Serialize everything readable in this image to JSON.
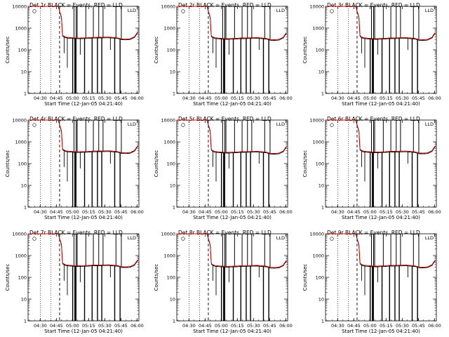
{
  "figure": {
    "colors": {
      "events": "#000000",
      "lld": "#cc0000",
      "axes": "#000000"
    }
  },
  "chart_data": [
    {
      "type": "line",
      "title": "Det 1r BLACK = Events, RED = LLD",
      "xlabel": "Start Time (12-Jan-05 04:21:40)",
      "ylabel": "Counts/sec",
      "yscale": "log",
      "ylim": [
        1,
        10000
      ],
      "yticks": [
        1,
        10,
        100,
        1000,
        10000
      ],
      "ytick_labels": [
        "1",
        "10",
        "100",
        "1000",
        "10000"
      ],
      "xlim_minutes": [
        -3,
        100
      ],
      "xticks": [
        8.33,
        23.33,
        38.33,
        53.33,
        68.33,
        83.33,
        98.33
      ],
      "xtick_labels": [
        "04:30",
        "04:45",
        "05:00",
        "05:15",
        "05:30",
        "05:45",
        "06:00"
      ],
      "dotted_markers": [
        8.33,
        18.3
      ],
      "dashed_marker": 26.3,
      "legend_label": "LLD",
      "plateau": 340
    },
    {
      "type": "line",
      "title": "Det 2r BLACK = Events, RED = LLD",
      "xlabel": "Start Time (12-Jan-05 04:21:40)",
      "ylabel": "Counts/sec",
      "yscale": "log",
      "ylim": [
        1,
        10000
      ],
      "yticks": [
        1,
        10,
        100,
        1000,
        10000
      ],
      "ytick_labels": [
        "1",
        "10",
        "100",
        "1000",
        "10000"
      ],
      "xlim_minutes": [
        -3,
        100
      ],
      "xticks": [
        8.33,
        23.33,
        38.33,
        53.33,
        68.33,
        83.33,
        98.33
      ],
      "xtick_labels": [
        "04:30",
        "04:45",
        "05:00",
        "05:15",
        "05:30",
        "05:45",
        "06:00"
      ],
      "dotted_markers": [
        8.33,
        18.3
      ],
      "dashed_marker": 26.3,
      "legend_label": "LLD",
      "plateau": 320
    },
    {
      "type": "line",
      "title": "Det 3r BLACK = Events, RED = LLD",
      "xlabel": "Start Time (12-Jan-05 04:21:40)",
      "ylabel": "Counts/sec",
      "yscale": "log",
      "ylim": [
        1,
        10000
      ],
      "yticks": [
        1,
        10,
        100,
        1000,
        10000
      ],
      "ytick_labels": [
        "1",
        "10",
        "100",
        "1000",
        "10000"
      ],
      "xlim_minutes": [
        -3,
        100
      ],
      "xticks": [
        8.33,
        23.33,
        38.33,
        53.33,
        68.33,
        83.33,
        98.33
      ],
      "xtick_labels": [
        "04:30",
        "04:45",
        "05:00",
        "05:15",
        "05:30",
        "05:45",
        "06:00"
      ],
      "dotted_markers": [
        8.33,
        18.3
      ],
      "dashed_marker": 26.3,
      "legend_label": "LLD",
      "plateau": 320
    },
    {
      "type": "line",
      "title": "Det 4r BLACK = Events, RED = LLD",
      "xlabel": "Start Time (12-Jan-05 04:21:40)",
      "ylabel": "Counts/sec",
      "yscale": "log",
      "ylim": [
        1,
        10000
      ],
      "yticks": [
        1,
        10,
        100,
        1000,
        10000
      ],
      "ytick_labels": [
        "1",
        "10",
        "100",
        "1000",
        "10000"
      ],
      "xlim_minutes": [
        -3,
        100
      ],
      "xticks": [
        8.33,
        23.33,
        38.33,
        53.33,
        68.33,
        83.33,
        98.33
      ],
      "xtick_labels": [
        "04:30",
        "04:45",
        "05:00",
        "05:15",
        "05:30",
        "05:45",
        "06:00"
      ],
      "dotted_markers": [
        8.33,
        18.3
      ],
      "dashed_marker": 26.3,
      "legend_label": "LLD",
      "plateau": 340
    },
    {
      "type": "line",
      "title": "Det 5r BLACK = Events, RED = LLD",
      "xlabel": "Start Time (12-Jan-05 04:21:40)",
      "ylabel": "Counts/sec",
      "yscale": "log",
      "ylim": [
        1,
        10000
      ],
      "yticks": [
        1,
        10,
        100,
        1000,
        10000
      ],
      "ytick_labels": [
        "1",
        "10",
        "100",
        "1000",
        "10000"
      ],
      "xlim_minutes": [
        -3,
        100
      ],
      "xticks": [
        8.33,
        23.33,
        38.33,
        53.33,
        68.33,
        83.33,
        98.33
      ],
      "xtick_labels": [
        "04:30",
        "04:45",
        "05:00",
        "05:15",
        "05:30",
        "05:45",
        "06:00"
      ],
      "dotted_markers": [
        8.33,
        18.3
      ],
      "dashed_marker": 26.3,
      "legend_label": "LLD",
      "plateau": 320
    },
    {
      "type": "line",
      "title": "Det 6r BLACK = Events, RED = LLD",
      "xlabel": "Start Time (12-Jan-05 04:21:40)",
      "ylabel": "Counts/sec",
      "yscale": "log",
      "ylim": [
        1,
        10000
      ],
      "yticks": [
        1,
        10,
        100,
        1000,
        10000
      ],
      "ytick_labels": [
        "1",
        "10",
        "100",
        "1000",
        "10000"
      ],
      "xlim_minutes": [
        -3,
        100
      ],
      "xticks": [
        8.33,
        23.33,
        38.33,
        53.33,
        68.33,
        83.33,
        98.33
      ],
      "xtick_labels": [
        "04:30",
        "04:45",
        "05:00",
        "05:15",
        "05:30",
        "05:45",
        "06:00"
      ],
      "dotted_markers": [
        8.33,
        18.3
      ],
      "dashed_marker": 26.3,
      "legend_label": "LLD",
      "plateau": 330
    },
    {
      "type": "line",
      "title": "Det 7r BLACK = Events, RED = LLD",
      "xlabel": "Start Time (12-Jan-05 04:21:40)",
      "ylabel": "Counts/sec",
      "yscale": "log",
      "ylim": [
        1,
        10000
      ],
      "yticks": [
        1,
        10,
        100,
        1000,
        10000
      ],
      "ytick_labels": [
        "1",
        "10",
        "100",
        "1000",
        "10000"
      ],
      "xlim_minutes": [
        -3,
        100
      ],
      "xticks": [
        8.33,
        23.33,
        38.33,
        53.33,
        68.33,
        83.33,
        98.33
      ],
      "xtick_labels": [
        "04:30",
        "04:45",
        "05:00",
        "05:15",
        "05:30",
        "05:45",
        "06:00"
      ],
      "dotted_markers": [
        8.33,
        18.3
      ],
      "dashed_marker": 26.3,
      "legend_label": "LLD",
      "plateau": 330
    },
    {
      "type": "line",
      "title": "Det 8r BLACK = Events, RED = LLD",
      "xlabel": "Start Time (12-Jan-05 04:21:40)",
      "ylabel": "Counts/sec",
      "yscale": "log",
      "ylim": [
        1,
        10000
      ],
      "yticks": [
        1,
        10,
        100,
        1000,
        10000
      ],
      "ytick_labels": [
        "1",
        "10",
        "100",
        "1000",
        "10000"
      ],
      "xlim_minutes": [
        -3,
        100
      ],
      "xticks": [
        8.33,
        23.33,
        38.33,
        53.33,
        68.33,
        83.33,
        98.33
      ],
      "xtick_labels": [
        "04:30",
        "04:45",
        "05:00",
        "05:15",
        "05:30",
        "05:45",
        "06:00"
      ],
      "dotted_markers": [
        8.33,
        18.3
      ],
      "dashed_marker": 26.3,
      "legend_label": "LLD",
      "plateau": 310
    },
    {
      "type": "line",
      "title": "Det 9r BLACK = Events, RED = LLD",
      "xlabel": "Start Time (12-Jan-05 04:21:40)",
      "ylabel": "Counts/sec",
      "yscale": "log",
      "ylim": [
        1,
        10000
      ],
      "yticks": [
        1,
        10,
        100,
        1000,
        10000
      ],
      "ytick_labels": [
        "1",
        "10",
        "100",
        "1000",
        "10000"
      ],
      "xlim_minutes": [
        -3,
        100
      ],
      "xticks": [
        8.33,
        23.33,
        38.33,
        53.33,
        68.33,
        83.33,
        98.33
      ],
      "xtick_labels": [
        "04:30",
        "04:45",
        "05:00",
        "05:15",
        "05:30",
        "05:45",
        "06:00"
      ],
      "dotted_markers": [
        8.33,
        18.3
      ],
      "dashed_marker": 26.3,
      "legend_label": "LLD",
      "plateau": 320
    }
  ],
  "series_shape": {
    "decay_x": [
      -3,
      1,
      5,
      9,
      13,
      17,
      21,
      25,
      28,
      29
    ],
    "decay_y": [
      10000,
      10000,
      10000,
      10000,
      10000,
      10000,
      10000,
      10000,
      3000,
      450
    ],
    "plateau_profile_x": [
      29,
      32,
      36,
      40,
      44,
      48,
      52,
      56,
      60,
      64,
      68,
      72,
      76,
      80,
      84,
      88,
      92,
      96,
      99
    ],
    "plateau_profile_factor": [
      1.25,
      1.05,
      1.0,
      0.97,
      0.95,
      0.97,
      0.98,
      1.02,
      1.03,
      1.04,
      1.05,
      1.06,
      1.02,
      0.98,
      0.86,
      0.85,
      0.88,
      1.1,
      1.8
    ],
    "dropouts": [
      {
        "x": 30.5,
        "y": 70
      },
      {
        "x": 33.5,
        "y": 15
      },
      {
        "x": 38.5,
        "y": 1
      },
      {
        "x": 40.5,
        "y": 1
      },
      {
        "x": 41.5,
        "y": 1
      },
      {
        "x": 45.5,
        "y": 60
      },
      {
        "x": 49.5,
        "y": 1
      },
      {
        "x": 56.5,
        "y": 1
      },
      {
        "x": 61.5,
        "y": 1
      },
      {
        "x": 65.5,
        "y": 1
      },
      {
        "x": 73.5,
        "y": 100
      },
      {
        "x": 77.5,
        "y": 1
      },
      {
        "x": 82.5,
        "y": 1
      }
    ]
  }
}
